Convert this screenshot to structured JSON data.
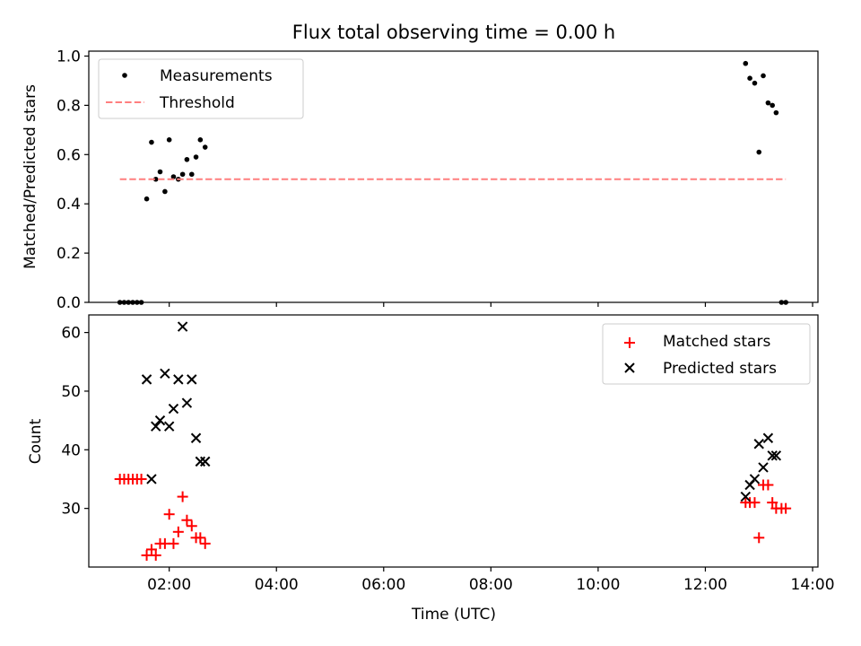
{
  "chart_data": [
    {
      "type": "scatter",
      "title": "Flux total observing time = 0.00 h",
      "xlabel": "",
      "ylabel": "Matched/Predicted stars",
      "xlim": [
        0.5,
        14.1
      ],
      "ylim": [
        0.0,
        1.02
      ],
      "x_ticks": [
        2,
        4,
        6,
        8,
        10,
        12,
        14
      ],
      "x_tick_labels_visible": false,
      "y_ticks": [
        0.0,
        0.2,
        0.4,
        0.6,
        0.8,
        1.0
      ],
      "y_tick_labels": [
        "0.0",
        "0.2",
        "0.4",
        "0.6",
        "0.8",
        "1.0"
      ],
      "legend_position": "upper-left",
      "series": [
        {
          "name": "Measurements",
          "kind": "scatter",
          "marker": "dot",
          "color": "#000000",
          "x": [
            1.08,
            1.16,
            1.24,
            1.32,
            1.4,
            1.48,
            1.58,
            1.67,
            1.75,
            1.83,
            1.92,
            2.0,
            2.08,
            2.17,
            2.25,
            2.33,
            2.42,
            2.5,
            2.58,
            2.67,
            12.75,
            12.83,
            12.92,
            13.0,
            13.08,
            13.17,
            13.25,
            13.32,
            13.42,
            13.5
          ],
          "y": [
            0.0,
            0.0,
            0.0,
            0.0,
            0.0,
            0.0,
            0.42,
            0.65,
            0.5,
            0.53,
            0.45,
            0.66,
            0.51,
            0.5,
            0.52,
            0.58,
            0.52,
            0.59,
            0.66,
            0.63,
            0.97,
            0.91,
            0.89,
            0.61,
            0.92,
            0.81,
            0.8,
            0.77,
            0.0,
            0.0
          ]
        },
        {
          "name": "Threshold",
          "kind": "line",
          "style": "dashed",
          "color": "#ff7f7f",
          "x": [
            1.08,
            13.5
          ],
          "y": [
            0.5,
            0.5
          ]
        }
      ]
    },
    {
      "type": "scatter",
      "title": "",
      "xlabel": "Time (UTC)",
      "ylabel": "Count",
      "xlim": [
        0.5,
        14.1
      ],
      "ylim": [
        20.0,
        63.0
      ],
      "x_ticks": [
        2,
        4,
        6,
        8,
        10,
        12,
        14
      ],
      "x_tick_labels": [
        "02:00",
        "04:00",
        "06:00",
        "08:00",
        "10:00",
        "12:00",
        "14:00"
      ],
      "y_ticks": [
        30,
        40,
        50,
        60
      ],
      "y_tick_labels": [
        "30",
        "40",
        "50",
        "60"
      ],
      "legend_position": "upper-right",
      "series": [
        {
          "name": "Matched stars",
          "kind": "scatter",
          "marker": "plus",
          "color": "#ff0000",
          "x": [
            1.08,
            1.16,
            1.24,
            1.32,
            1.4,
            1.48,
            1.58,
            1.67,
            1.75,
            1.83,
            1.92,
            2.0,
            2.08,
            2.17,
            2.25,
            2.33,
            2.42,
            2.5,
            2.58,
            2.67,
            12.75,
            12.83,
            12.92,
            13.0,
            13.08,
            13.17,
            13.25,
            13.32,
            13.42,
            13.5
          ],
          "y": [
            35,
            35,
            35,
            35,
            35,
            35,
            22,
            23,
            22,
            24,
            24,
            29,
            24,
            26,
            32,
            28,
            27,
            25,
            25,
            24,
            31,
            31,
            31,
            25,
            34,
            34,
            31,
            30,
            30,
            30
          ]
        },
        {
          "name": "Predicted stars",
          "kind": "scatter",
          "marker": "x",
          "color": "#000000",
          "x": [
            1.58,
            1.67,
            1.75,
            1.83,
            1.92,
            2.0,
            2.08,
            2.17,
            2.25,
            2.33,
            2.42,
            2.5,
            2.58,
            2.67,
            12.75,
            12.83,
            12.92,
            13.0,
            13.08,
            13.17,
            13.25,
            13.32
          ],
          "y": [
            52,
            35,
            44,
            45,
            53,
            44,
            47,
            52,
            61,
            48,
            52,
            42,
            38,
            38,
            32,
            34,
            35,
            41,
            37,
            42,
            39,
            39
          ]
        }
      ]
    }
  ]
}
